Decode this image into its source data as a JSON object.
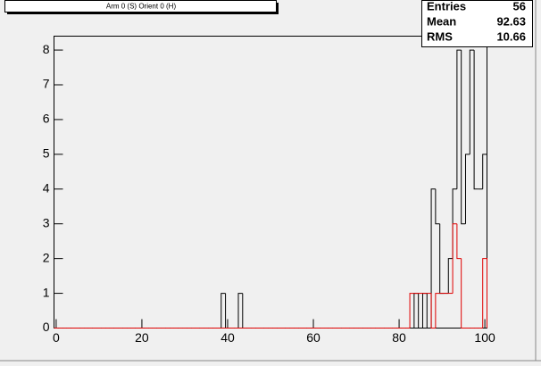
{
  "chart_data": {
    "type": "histogram",
    "title": "Arm 0 (S) Orient 0 (H)",
    "stats": [
      {
        "label": "Entries",
        "value": "56"
      },
      {
        "label": "Mean",
        "value": "92.63"
      },
      {
        "label": "RMS",
        "value": "10.66"
      }
    ],
    "bins": [
      -0.5,
      0.5,
      1.5,
      2.5,
      3.5,
      4.5,
      5.5,
      6.5,
      7.5,
      8.5,
      9.5,
      10.5,
      11.5,
      12.5,
      13.5,
      14.5,
      15.5,
      16.5,
      17.5,
      18.5,
      19.5,
      20.5,
      21.5,
      22.5,
      23.5,
      24.5,
      25.5,
      26.5,
      27.5,
      28.5,
      29.5,
      30.5,
      31.5,
      32.5,
      33.5,
      34.5,
      35.5,
      36.5,
      37.5,
      38.5,
      39.5,
      40.5,
      41.5,
      42.5,
      43.5,
      44.5,
      45.5,
      46.5,
      47.5,
      48.5,
      49.5,
      50.5,
      51.5,
      52.5,
      53.5,
      54.5,
      55.5,
      56.5,
      57.5,
      58.5,
      59.5,
      60.5,
      61.5,
      62.5,
      63.5,
      64.5,
      65.5,
      66.5,
      67.5,
      68.5,
      69.5,
      70.5,
      71.5,
      72.5,
      73.5,
      74.5,
      75.5,
      76.5,
      77.5,
      78.5,
      79.5,
      80.5,
      81.5,
      82.5,
      83.5,
      84.5,
      85.5,
      86.5,
      87.5,
      88.5,
      89.5,
      90.5,
      91.5,
      92.5,
      93.5,
      94.5,
      95.5,
      96.5,
      97.5,
      98.5,
      99.5,
      100.5
    ],
    "series": [
      {
        "color": "#000000",
        "values": [
          0,
          0,
          0,
          0,
          0,
          0,
          0,
          0,
          0,
          0,
          0,
          0,
          0,
          0,
          0,
          0,
          0,
          0,
          0,
          0,
          0,
          0,
          0,
          0,
          0,
          0,
          0,
          0,
          0,
          0,
          0,
          0,
          0,
          0,
          0,
          0,
          0,
          0,
          0,
          1,
          0,
          0,
          0,
          1,
          0,
          0,
          0,
          0,
          0,
          0,
          0,
          0,
          0,
          0,
          0,
          0,
          0,
          0,
          0,
          0,
          0,
          0,
          0,
          0,
          0,
          0,
          0,
          0,
          0,
          0,
          0,
          0,
          0,
          0,
          0,
          0,
          0,
          0,
          0,
          0,
          0,
          0,
          0,
          0,
          1,
          0,
          1,
          0,
          4,
          3,
          1,
          1,
          2,
          4,
          8,
          3,
          5,
          8,
          4,
          4,
          5
        ]
      },
      {
        "color": "#e00000",
        "values": [
          0,
          0,
          0,
          0,
          0,
          0,
          0,
          0,
          0,
          0,
          0,
          0,
          0,
          0,
          0,
          0,
          0,
          0,
          0,
          0,
          0,
          0,
          0,
          0,
          0,
          0,
          0,
          0,
          0,
          0,
          0,
          0,
          0,
          0,
          0,
          0,
          0,
          0,
          0,
          0,
          0,
          0,
          0,
          0,
          0,
          0,
          0,
          0,
          0,
          0,
          0,
          0,
          0,
          0,
          0,
          0,
          0,
          0,
          0,
          0,
          0,
          0,
          0,
          0,
          0,
          0,
          0,
          0,
          0,
          0,
          0,
          0,
          0,
          0,
          0,
          0,
          0,
          0,
          0,
          0,
          0,
          0,
          0,
          1,
          1,
          1,
          1,
          1,
          0,
          1,
          1,
          1,
          1,
          3,
          2,
          0,
          0,
          0,
          0,
          0,
          2
        ]
      }
    ],
    "xlim": [
      -0.5,
      100.5
    ],
    "xticks": [
      0,
      20,
      40,
      60,
      80,
      100
    ],
    "ylim": [
      0,
      8.4
    ],
    "yticks": [
      0,
      1,
      2,
      3,
      4,
      5,
      6,
      7,
      8
    ]
  }
}
